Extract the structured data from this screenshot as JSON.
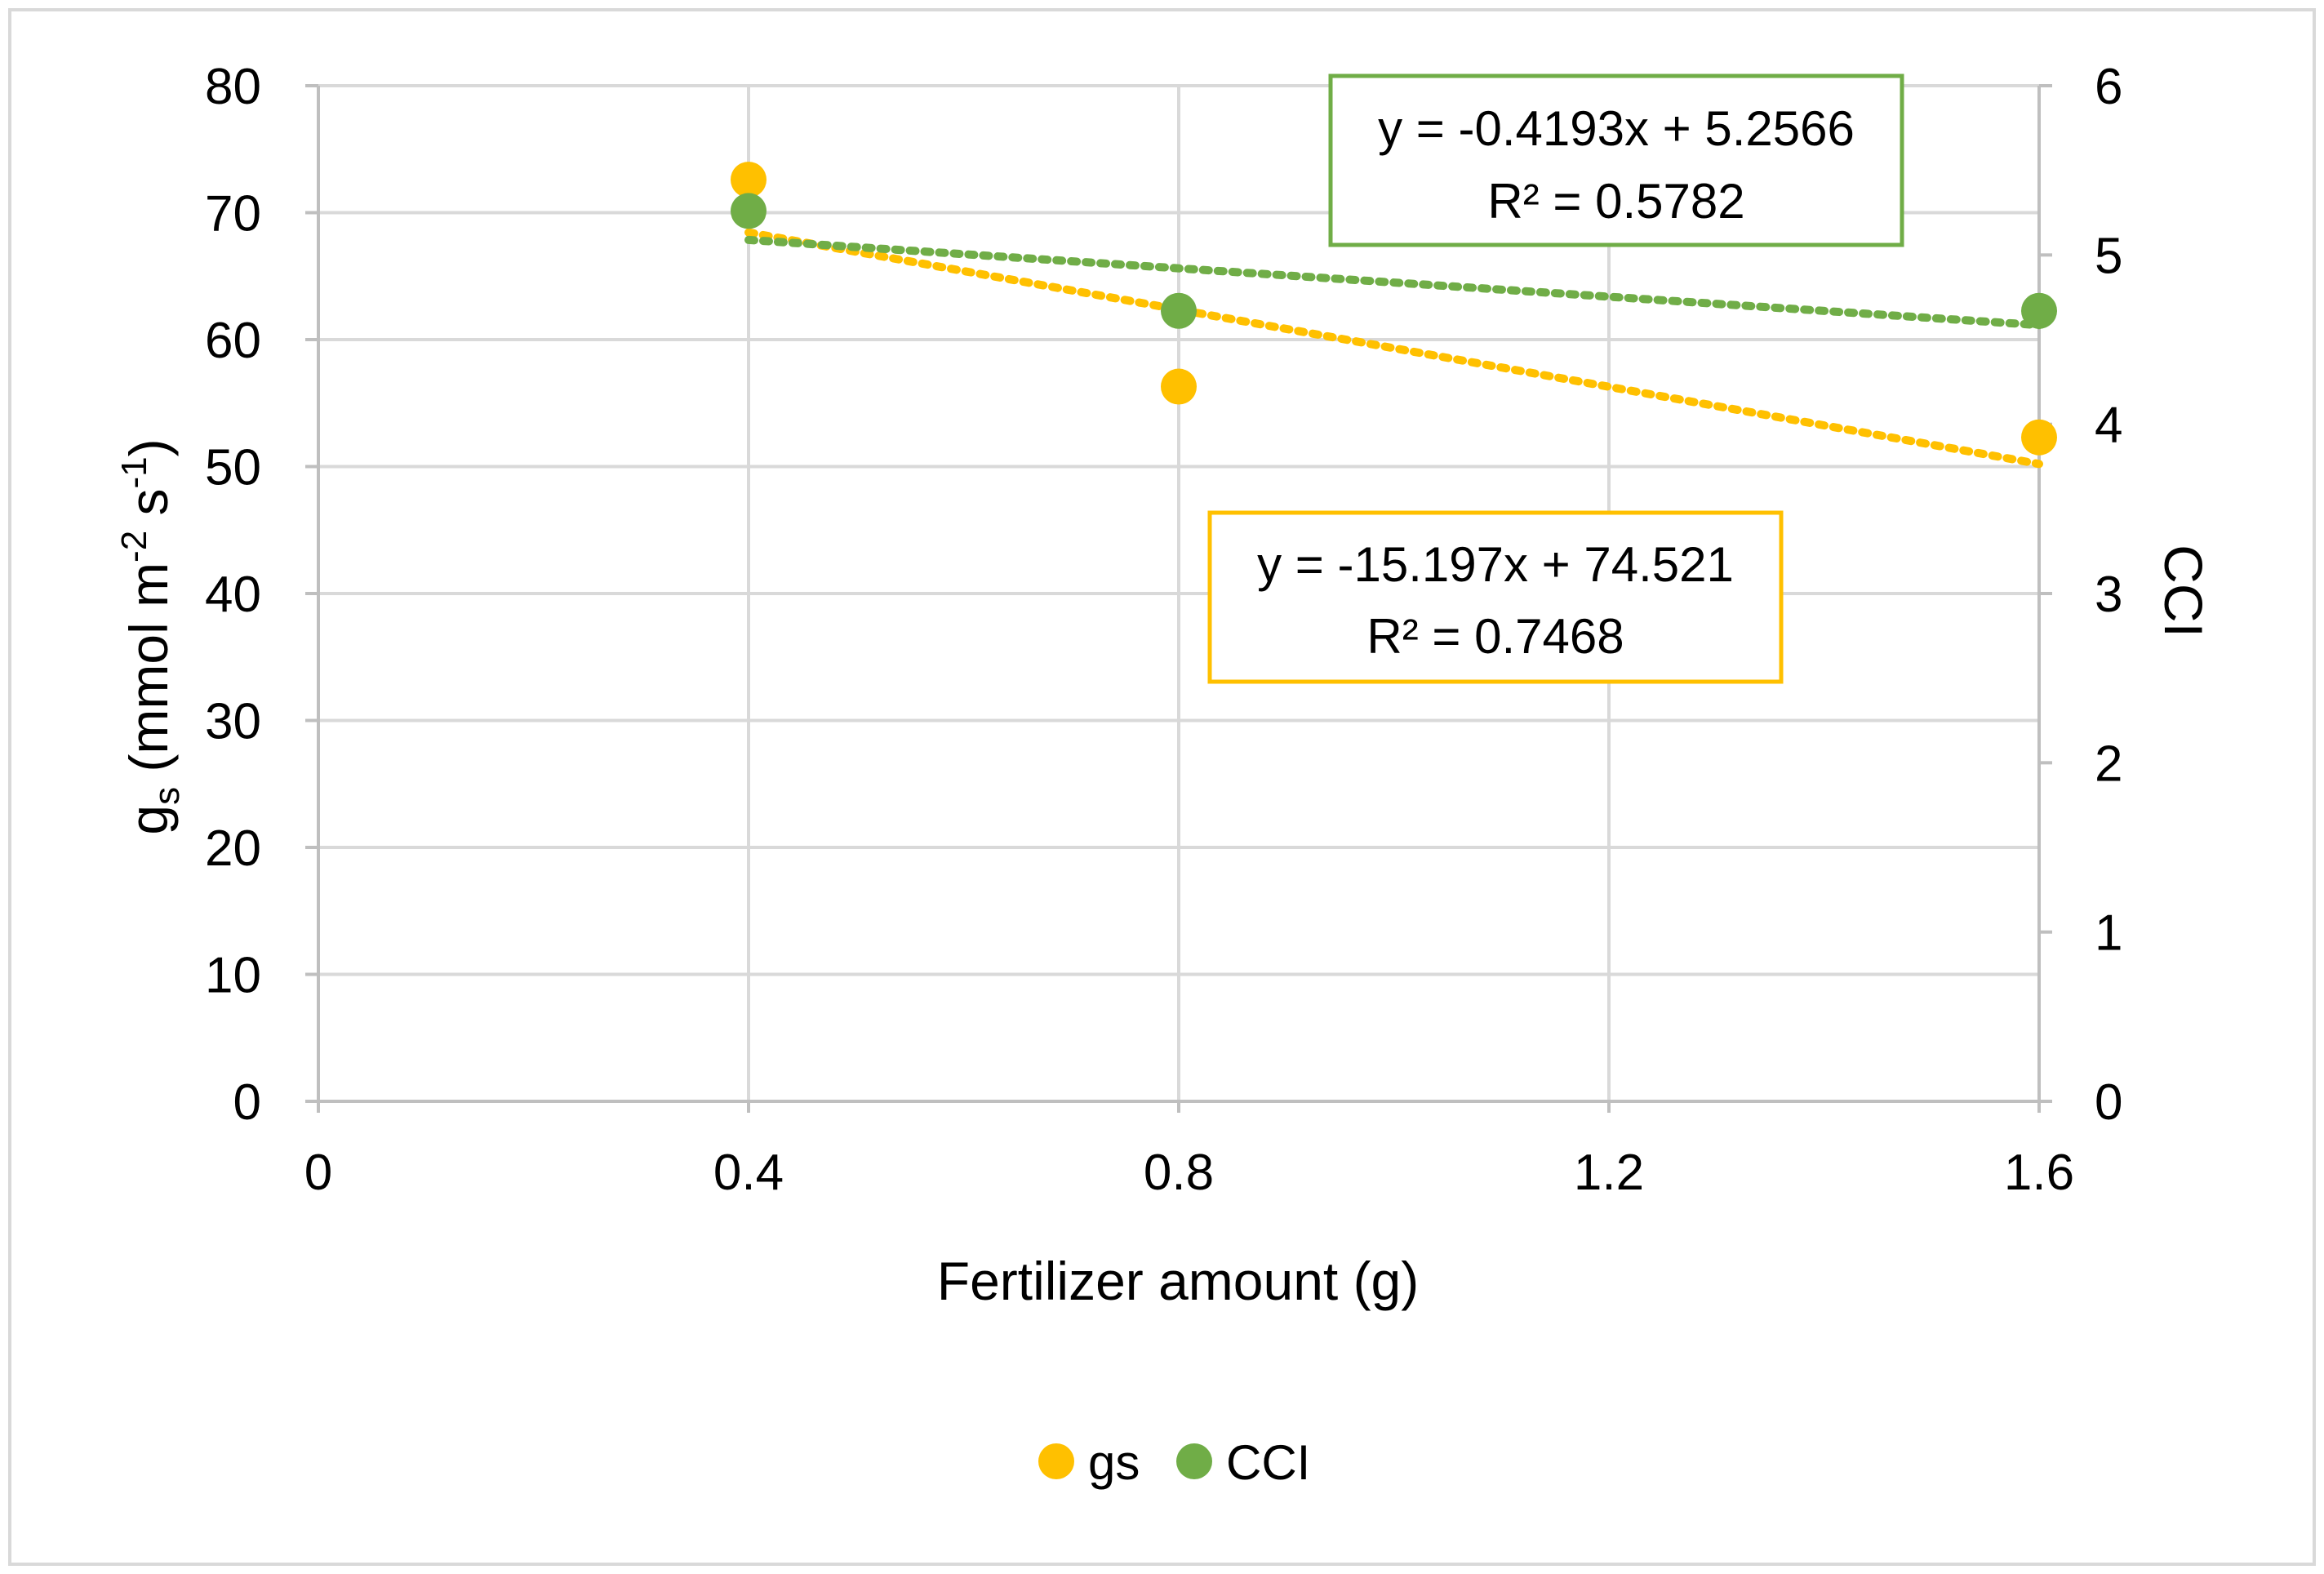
{
  "chart_data": {
    "type": "scatter",
    "x_axis": {
      "label": "Fertilizer amount (g)",
      "range": [
        0,
        1.6
      ],
      "ticks": [
        0,
        0.4,
        0.8,
        1.2,
        1.6
      ],
      "tick_labels": [
        "0",
        "0.4",
        "0.8",
        "1.2",
        "1.6"
      ]
    },
    "y_axis_left": {
      "label_main": "g",
      "label_sub": "s",
      "label_unit": " (mmol m",
      "label_sup1": "-2",
      "label_mid": " s",
      "label_sup2": "-1",
      "label_close": ")",
      "range": [
        0,
        80
      ],
      "ticks": [
        0,
        10,
        20,
        30,
        40,
        50,
        60,
        70,
        80
      ],
      "tick_labels": [
        "0",
        "10",
        "20",
        "30",
        "40",
        "50",
        "60",
        "70",
        "80"
      ]
    },
    "y_axis_right": {
      "label": "CCI",
      "range": [
        0,
        6
      ],
      "ticks": [
        0,
        1,
        2,
        3,
        4,
        5,
        6
      ],
      "tick_labels": [
        "0",
        "1",
        "2",
        "3",
        "4",
        "5",
        "6"
      ]
    },
    "grid": true,
    "series": [
      {
        "name": "gs",
        "axis": "left",
        "color": "#FFC000",
        "x": [
          0.4,
          0.8,
          1.6
        ],
        "y": [
          72.6,
          56.3,
          52.3
        ],
        "trendline": {
          "slope": -15.197,
          "intercept": 74.521,
          "equation": "y = -15.197x + 74.521",
          "r2": "R² = 0.7468"
        }
      },
      {
        "name": "CCI",
        "axis": "right",
        "color": "#70AD47",
        "x": [
          0.4,
          0.8,
          1.6
        ],
        "y": [
          5.26,
          4.67,
          4.67
        ],
        "trendline": {
          "slope": -0.4193,
          "intercept": 5.2566,
          "equation": "y = -0.4193x + 5.2566",
          "r2": "R² = 0.5782"
        }
      }
    ],
    "legend": {
      "position": "bottom",
      "entries": [
        "gs",
        "CCI"
      ]
    }
  }
}
